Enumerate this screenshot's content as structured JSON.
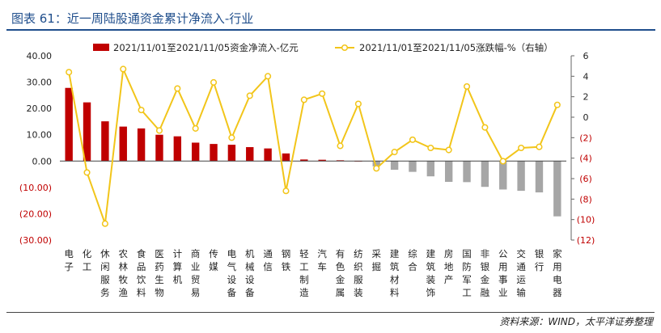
{
  "header": {
    "title": "图表 61：近一周陆股通资金累计净流入-行业"
  },
  "footer": {
    "source": "资料来源：WIND，太平洋证券整理"
  },
  "colors": {
    "bar_positive": "#c00000",
    "bar_negative": "#a6a6a6",
    "line": "#f2c51a",
    "title": "#1f4e8c"
  },
  "chart_data": {
    "type": "bar",
    "categories": [
      "电子",
      "化工",
      "休闲服务",
      "农林牧渔",
      "食品饮料",
      "医药生物",
      "计算机",
      "商业贸易",
      "传媒",
      "电气设备",
      "机械设备",
      "通信",
      "钢铁",
      "轻工制造",
      "汽车",
      "有色金属",
      "纺织服装",
      "采掘",
      "建筑材料",
      "综合",
      "建筑装饰",
      "房地产",
      "国防军工",
      "非银金融",
      "公用事业",
      "交通运输",
      "银行",
      "家用电器"
    ],
    "series": [
      {
        "name": "2021/11/01至2021/11/05资金净流入-亿元",
        "type": "bar",
        "axis": "left",
        "values": [
          27.8,
          22.3,
          15.1,
          13.1,
          12.4,
          10.0,
          9.4,
          7.0,
          6.5,
          6.2,
          5.3,
          4.8,
          2.9,
          0.6,
          0.5,
          0.3,
          0.0,
          -2.0,
          -3.3,
          -4.1,
          -5.8,
          -7.9,
          -8.0,
          -9.8,
          -10.8,
          -11.3,
          -11.9,
          -21.0
        ]
      },
      {
        "name": "2021/11/01至2021/11/05涨跌幅-%（右轴）",
        "type": "line",
        "axis": "right",
        "values": [
          4.4,
          -5.4,
          -10.4,
          4.7,
          0.7,
          -1.3,
          2.8,
          -1.1,
          3.4,
          -2.0,
          2.1,
          4.0,
          -7.2,
          1.7,
          2.3,
          -2.8,
          1.3,
          -5.0,
          -3.4,
          -2.2,
          -3.0,
          -3.2,
          3.0,
          -1.0,
          -4.3,
          -3.0,
          -2.9,
          1.2
        ]
      }
    ],
    "y_left": {
      "range": [
        -30,
        40
      ],
      "ticks": [
        "(30.00)",
        "(20.00)",
        "(10.00)",
        "0.00",
        "10.00",
        "20.00",
        "30.00",
        "40.00"
      ]
    },
    "y_right": {
      "range": [
        -12,
        6
      ],
      "ticks": [
        "(12)",
        "(10)",
        "(8)",
        "(6)",
        "(4)",
        "(2)",
        "0",
        "2",
        "4",
        "6"
      ]
    },
    "legend_position": "top",
    "grid": false
  }
}
